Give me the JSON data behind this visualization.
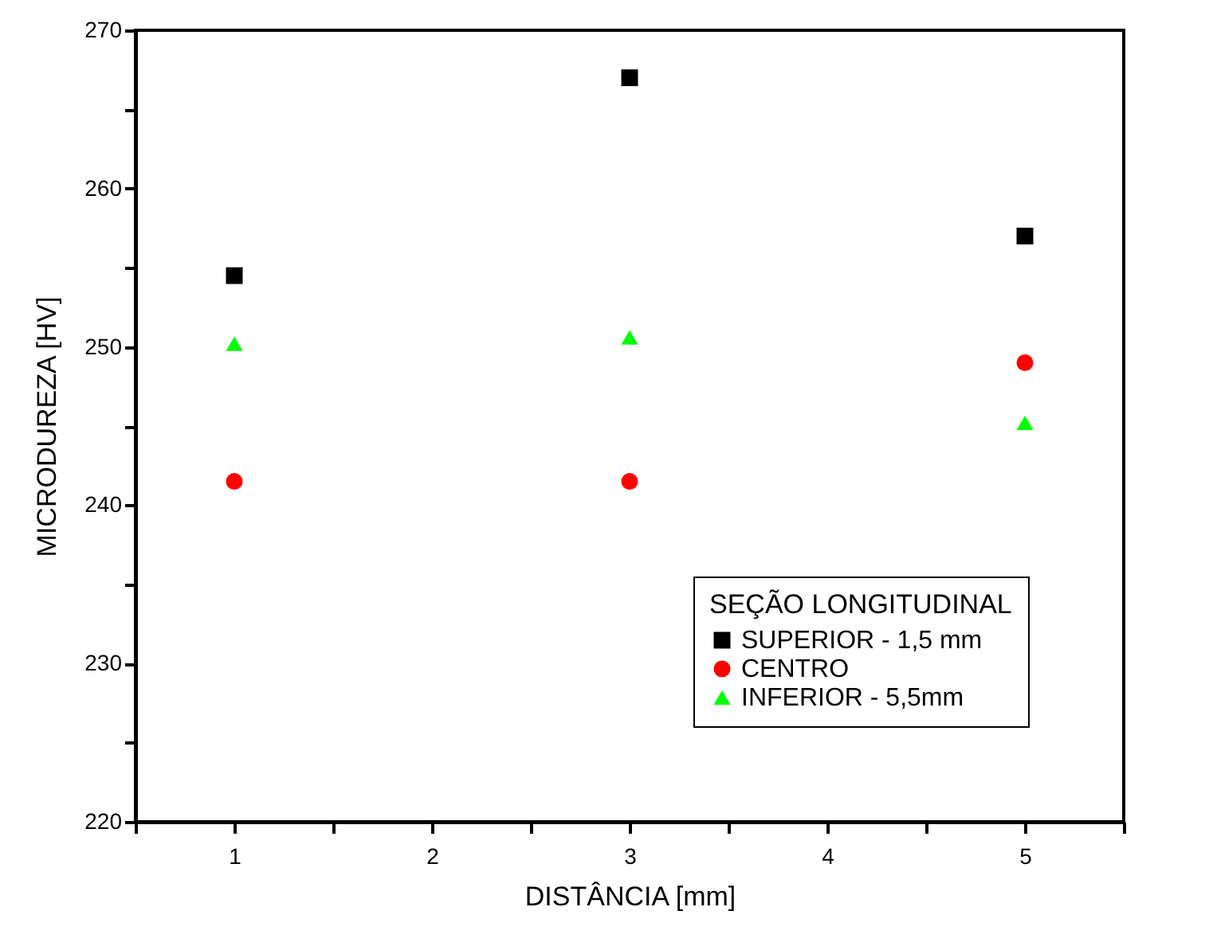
{
  "chart_data": {
    "type": "scatter",
    "xlabel": "DISTÂNCIA [mm]",
    "ylabel": "MICRODUREZA [HV]",
    "legend_title": "SEÇÃO LONGITUDINAL",
    "x": [
      1,
      3,
      5
    ],
    "series": [
      {
        "name": "SUPERIOR - 1,5 mm",
        "color": "#000000",
        "marker": "square",
        "values": [
          254.5,
          267.0,
          257.0
        ]
      },
      {
        "name": "CENTRO",
        "color": "#ff0000",
        "marker": "circle",
        "values": [
          241.5,
          241.5,
          249.0
        ]
      },
      {
        "name": "INFERIOR - 5,5mm",
        "color": "#00ff00",
        "marker": "triangle",
        "values": [
          250.2,
          250.6,
          245.2
        ]
      }
    ],
    "xlim": [
      0.5,
      5.5
    ],
    "xticks": [
      {
        "value": 0.5,
        "label": null
      },
      1,
      {
        "value": 1.5,
        "label": null
      },
      2,
      {
        "value": 2.5,
        "label": null
      },
      3,
      {
        "value": 3.5,
        "label": null
      },
      4,
      {
        "value": 4.5,
        "label": null
      },
      5,
      {
        "value": 5.5,
        "label": null
      }
    ],
    "ylim": [
      220,
      270
    ],
    "yticks": [
      220,
      {
        "value": 225,
        "label": null
      },
      230,
      {
        "value": 235,
        "label": null
      },
      240,
      {
        "value": 245,
        "label": null
      },
      250,
      {
        "value": 255,
        "label": null
      },
      260,
      {
        "value": 265,
        "label": null
      },
      270
    ],
    "grid": false,
    "legend": "bottom right"
  }
}
